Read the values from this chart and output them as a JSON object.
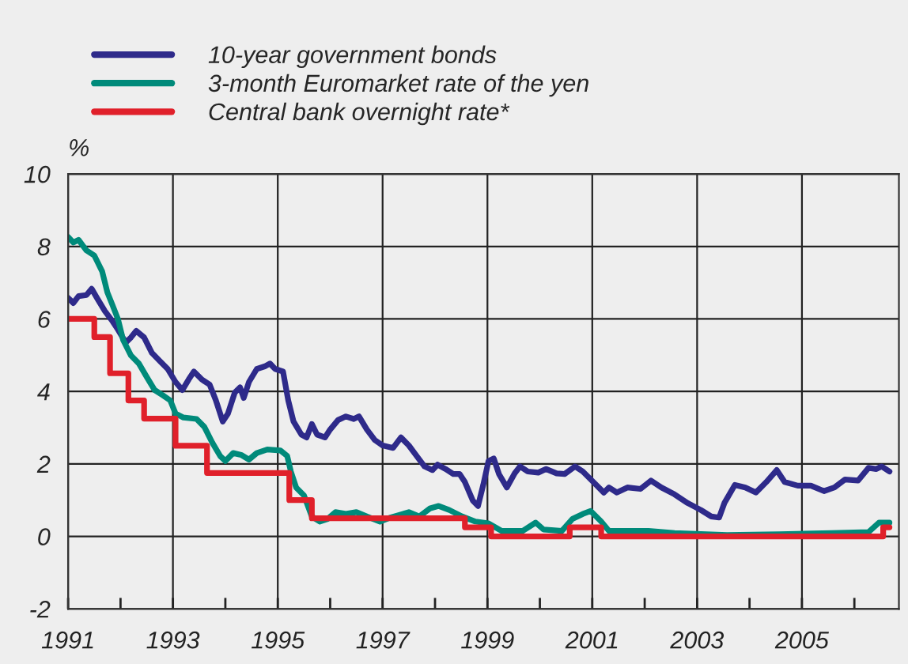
{
  "chart_data": {
    "type": "line",
    "ylabel": "%",
    "xlim": [
      1991,
      2006.85
    ],
    "ylim": [
      -2,
      10
    ],
    "xticks": [
      1991,
      {
        "value": 1992,
        "label": null
      },
      1993,
      {
        "value": 1994,
        "label": null
      },
      1995,
      {
        "value": 1996,
        "label": null
      },
      1997,
      {
        "value": 1998,
        "label": null
      },
      1999,
      {
        "value": 2000,
        "label": null
      },
      2001,
      {
        "value": 2002,
        "label": null
      },
      2003,
      {
        "value": 2004,
        "label": null
      },
      2005,
      {
        "value": 2006,
        "label": null
      }
    ],
    "yticks": [
      -2,
      0,
      2,
      4,
      6,
      8,
      10
    ],
    "grid": true,
    "legend": "top left",
    "marker": "none",
    "line_style": "solid",
    "series": [
      {
        "name": "10-year government bonds",
        "color": "#2e2a8a",
        "x": [
          1991.0,
          1991.1,
          1991.2,
          1991.35,
          1991.45,
          1991.55,
          1991.7,
          1991.85,
          1991.95,
          1992.1,
          1992.2,
          1992.3,
          1992.45,
          1992.6,
          1992.75,
          1992.9,
          1993.05,
          1993.18,
          1993.3,
          1993.4,
          1993.55,
          1993.7,
          1993.82,
          1993.95,
          1994.05,
          1994.18,
          1994.28,
          1994.35,
          1994.45,
          1994.6,
          1994.75,
          1994.85,
          1994.95,
          1995.1,
          1995.2,
          1995.3,
          1995.45,
          1995.55,
          1995.65,
          1995.75,
          1995.9,
          1996.0,
          1996.15,
          1996.3,
          1996.45,
          1996.55,
          1996.7,
          1996.85,
          1997.0,
          1997.2,
          1997.35,
          1997.5,
          1997.65,
          1997.8,
          1997.95,
          1998.05,
          1998.2,
          1998.35,
          1998.47,
          1998.57,
          1998.72,
          1998.82,
          1998.92,
          1999.02,
          1999.12,
          1999.22,
          1999.37,
          1999.52,
          1999.62,
          1999.77,
          1999.97,
          2000.12,
          2000.32,
          2000.47,
          2000.67,
          2000.82,
          2001.02,
          2001.22,
          2001.32,
          2001.47,
          2001.67,
          2001.92,
          2002.12,
          2002.32,
          2002.57,
          2002.82,
          2003.07,
          2003.27,
          2003.42,
          2003.52,
          2003.72,
          2003.92,
          2004.12,
          2004.32,
          2004.52,
          2004.67,
          2004.92,
          2005.17,
          2005.42,
          2005.62,
          2005.82,
          2006.07,
          2006.27,
          2006.42,
          2006.52,
          2006.67
        ],
        "values": [
          6.58,
          6.44,
          6.63,
          6.66,
          6.83,
          6.58,
          6.22,
          5.93,
          5.71,
          5.35,
          5.49,
          5.67,
          5.49,
          5.06,
          4.84,
          4.62,
          4.26,
          4.04,
          4.33,
          4.55,
          4.33,
          4.19,
          3.75,
          3.17,
          3.39,
          3.97,
          4.11,
          3.82,
          4.26,
          4.62,
          4.69,
          4.77,
          4.62,
          4.55,
          3.75,
          3.17,
          2.81,
          2.73,
          3.1,
          2.81,
          2.73,
          2.95,
          3.21,
          3.31,
          3.24,
          3.31,
          2.95,
          2.66,
          2.51,
          2.44,
          2.73,
          2.51,
          2.22,
          1.93,
          1.83,
          1.98,
          1.86,
          1.72,
          1.72,
          1.5,
          0.99,
          0.84,
          1.42,
          2.08,
          2.15,
          1.72,
          1.35,
          1.74,
          1.93,
          1.79,
          1.76,
          1.86,
          1.74,
          1.72,
          1.93,
          1.79,
          1.5,
          1.21,
          1.35,
          1.21,
          1.35,
          1.31,
          1.54,
          1.35,
          1.16,
          0.92,
          0.73,
          0.55,
          0.52,
          0.92,
          1.42,
          1.35,
          1.21,
          1.5,
          1.83,
          1.5,
          1.4,
          1.4,
          1.25,
          1.35,
          1.57,
          1.54,
          1.89,
          1.86,
          1.93,
          1.79
        ]
      },
      {
        "name": "3-month Euromarket rate of the yen",
        "color": "#008a7a",
        "x": [
          1991.0,
          1991.1,
          1991.2,
          1991.35,
          1991.5,
          1991.65,
          1991.75,
          1991.85,
          1991.95,
          1992.05,
          1992.2,
          1992.35,
          1992.5,
          1992.65,
          1992.8,
          1992.95,
          1993.05,
          1993.2,
          1993.45,
          1993.6,
          1993.75,
          1993.9,
          1994.0,
          1994.15,
          1994.3,
          1994.45,
          1994.6,
          1994.8,
          1995.05,
          1995.18,
          1995.25,
          1995.35,
          1995.5,
          1995.65,
          1995.8,
          1995.95,
          1996.1,
          1996.3,
          1996.5,
          1996.7,
          1996.95,
          1997.15,
          1997.5,
          1997.7,
          1997.9,
          1998.07,
          1998.27,
          1998.52,
          1998.77,
          1999.02,
          1999.27,
          1999.67,
          1999.92,
          2000.07,
          2000.42,
          2000.62,
          2000.82,
          2000.97,
          2001.17,
          2001.32,
          2002.07,
          2002.57,
          2003.57,
          2004.57,
          2005.57,
          2006.27,
          2006.47,
          2006.67
        ],
        "values": [
          8.26,
          8.11,
          8.18,
          7.89,
          7.75,
          7.31,
          6.73,
          6.37,
          6.0,
          5.42,
          4.99,
          4.77,
          4.4,
          4.04,
          3.9,
          3.75,
          3.39,
          3.28,
          3.24,
          3.02,
          2.59,
          2.22,
          2.08,
          2.3,
          2.25,
          2.12,
          2.3,
          2.4,
          2.37,
          2.22,
          1.79,
          1.35,
          1.13,
          0.55,
          0.41,
          0.48,
          0.67,
          0.62,
          0.67,
          0.55,
          0.41,
          0.52,
          0.67,
          0.55,
          0.77,
          0.84,
          0.73,
          0.55,
          0.41,
          0.36,
          0.15,
          0.15,
          0.38,
          0.19,
          0.15,
          0.48,
          0.62,
          0.7,
          0.41,
          0.15,
          0.15,
          0.09,
          0.04,
          0.06,
          0.09,
          0.12,
          0.38,
          0.38
        ]
      },
      {
        "name": "Central bank overnight rate*",
        "color": "#e0202a",
        "type": "step",
        "x": [
          1991.0,
          1991.5,
          1991.8,
          1992.15,
          1992.45,
          1993.05,
          1993.65,
          1995.22,
          1995.65,
          1998.57,
          1999.07,
          2000.57,
          2001.17,
          2006.55,
          2006.67
        ],
        "values": [
          6.0,
          5.5,
          4.5,
          3.75,
          3.25,
          2.5,
          1.75,
          1.0,
          0.5,
          0.25,
          0,
          0.25,
          0,
          0.25,
          0.25
        ]
      }
    ]
  }
}
